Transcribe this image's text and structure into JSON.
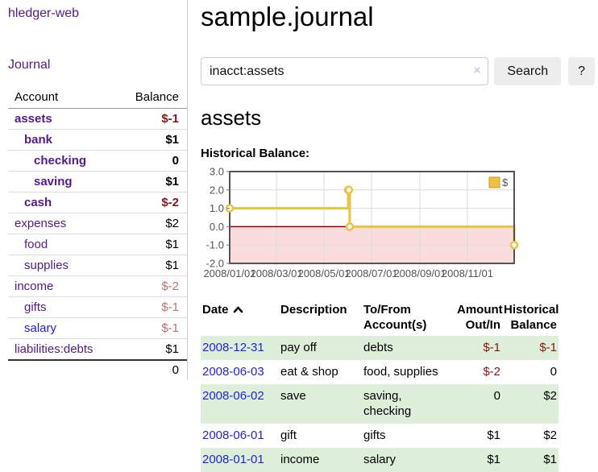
{
  "app": {
    "brand": "hledger-web",
    "nav_journal": "Journal"
  },
  "colors": {
    "link_purple": "#551A8B",
    "link_blue": "#2222dd",
    "negative_strong": "#8b1515",
    "negative_dim": "#c07070",
    "row_green": "#ddeed9",
    "chart_line_gold": "#edc240",
    "chart_negative_fill": "#fbdcdc",
    "chart_zero_line": "#8b0000"
  },
  "sidebar": {
    "headers": {
      "account": "Account",
      "balance": "Balance"
    },
    "accounts": [
      {
        "name": "assets",
        "level": 1,
        "bold": true,
        "link_color": "purple",
        "balance": "$-1",
        "balance_class": "neg"
      },
      {
        "name": "bank",
        "level": 2,
        "bold": true,
        "link_color": "purple",
        "balance": "$1",
        "balance_class": ""
      },
      {
        "name": "checking",
        "level": 3,
        "bold": true,
        "link_color": "purple",
        "balance": "0",
        "balance_class": ""
      },
      {
        "name": "saving",
        "level": 3,
        "bold": true,
        "link_color": "purple",
        "balance": "$1",
        "balance_class": ""
      },
      {
        "name": "cash",
        "level": 2,
        "bold": true,
        "link_color": "purple",
        "balance": "$-2",
        "balance_class": "neg"
      },
      {
        "name": "expenses",
        "level": 1,
        "bold": false,
        "link_color": "purple",
        "balance": "$2",
        "balance_class": ""
      },
      {
        "name": "food",
        "level": 2,
        "bold": false,
        "link_color": "purple",
        "balance": "$1",
        "balance_class": ""
      },
      {
        "name": "supplies",
        "level": 2,
        "bold": false,
        "link_color": "purple",
        "balance": "$1",
        "balance_class": ""
      },
      {
        "name": "income",
        "level": 1,
        "bold": false,
        "link_color": "purple",
        "balance": "$-2",
        "balance_class": "neg-dim"
      },
      {
        "name": "gifts",
        "level": 2,
        "bold": false,
        "link_color": "purple",
        "balance": "$-1",
        "balance_class": "neg-dim"
      },
      {
        "name": "salary",
        "level": 2,
        "bold": false,
        "link_color": "blue",
        "balance": "$-1",
        "balance_class": "neg-dim"
      },
      {
        "name": "liabilities:debts",
        "level": 1,
        "bold": false,
        "link_color": "purple",
        "balance": "$1",
        "balance_class": ""
      }
    ],
    "total": "0"
  },
  "main": {
    "title": "sample.journal",
    "search": {
      "value": "inacct:assets",
      "clear_label": "×",
      "button_label": "Search",
      "help_label": "?"
    },
    "account_heading": "assets",
    "chart_label": "Historical Balance:"
  },
  "chart_data": {
    "type": "line",
    "title": "Historical Balance",
    "step": true,
    "x_min": "2008-01-01",
    "x_max": "2008-12-31",
    "ylim": [
      -2,
      3
    ],
    "grid": true,
    "legend_position": "top-right",
    "legend_label": "$",
    "series": [
      {
        "name": "$",
        "color": "#edc240",
        "points": [
          {
            "date": "2008-01-01",
            "value": 1
          },
          {
            "date": "2008-06-01",
            "value": 2
          },
          {
            "date": "2008-06-02",
            "value": 2
          },
          {
            "date": "2008-06-03",
            "value": 0
          },
          {
            "date": "2008-12-31",
            "value": -1
          }
        ]
      }
    ],
    "xticks": [
      {
        "date": "2008-01-01",
        "label": "2008/01/01"
      },
      {
        "date": "2008-03-01",
        "label": "2008/03/01"
      },
      {
        "date": "2008-05-01",
        "label": "2008/05/01"
      },
      {
        "date": "2008-07-01",
        "label": "2008/07/01"
      },
      {
        "date": "2008-09-01",
        "label": "2008/09/01"
      },
      {
        "date": "2008-11-01",
        "label": "2008/11/01"
      }
    ],
    "yticks": [
      {
        "value": 3,
        "label": "3.0"
      },
      {
        "value": 2,
        "label": "2.0"
      },
      {
        "value": 1,
        "label": "1.0"
      },
      {
        "value": 0,
        "label": "0.0"
      },
      {
        "value": -1,
        "label": "-1.0"
      },
      {
        "value": -2,
        "label": "-2.0"
      }
    ],
    "negative_region_fill": "#fbdcdc",
    "zero_line_color": "#8b0000"
  },
  "register": {
    "headers": {
      "date": "Date",
      "description": "Description",
      "accounts": "To/From Account(s)",
      "amount": "Amount Out/In",
      "balance": "Historical Balance"
    },
    "rows": [
      {
        "date": "2008-12-31",
        "description": "pay off",
        "accounts": "debts",
        "amount": "$-1",
        "amount_negative": true,
        "balance": "$-1",
        "balance_negative": true
      },
      {
        "date": "2008-06-03",
        "description": "eat & shop",
        "accounts": "food, supplies",
        "amount": "$-2",
        "amount_negative": true,
        "balance": "0",
        "balance_negative": false
      },
      {
        "date": "2008-06-02",
        "description": "save",
        "accounts": "saving, checking",
        "amount": "0",
        "amount_negative": false,
        "balance": "$2",
        "balance_negative": false
      },
      {
        "date": "2008-06-01",
        "description": "gift",
        "accounts": "gifts",
        "amount": "$1",
        "amount_negative": false,
        "balance": "$2",
        "balance_negative": false
      },
      {
        "date": "2008-01-01",
        "description": "income",
        "accounts": "salary",
        "amount": "$1",
        "amount_negative": false,
        "balance": "$1",
        "balance_negative": false
      }
    ]
  }
}
